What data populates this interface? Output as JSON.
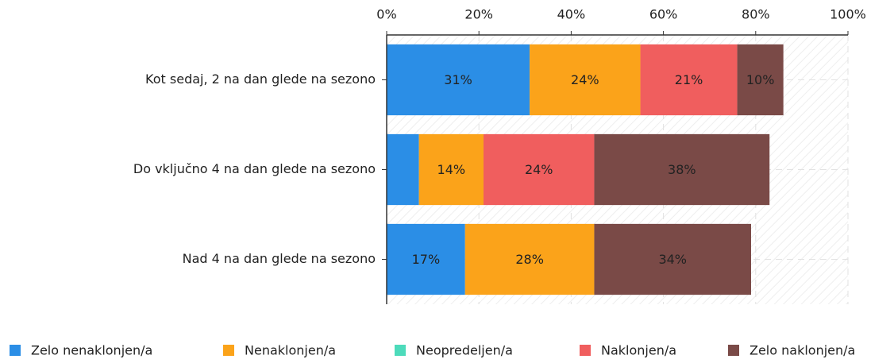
{
  "chart_data": {
    "type": "stacked-barh",
    "categories": [
      "Kot sedaj, 2 na dan glede na sezono",
      "Do vključno 4 na dan glede na sezono ",
      "Nad 4 na dan glede na sezono"
    ],
    "series": [
      {
        "name": "Zelo nenaklonjen/a",
        "color": "#2b8ee6",
        "values": [
          31,
          7,
          17
        ],
        "value_labels": [
          "31%",
          null,
          "17%"
        ]
      },
      {
        "name": "Nenaklonjen/a",
        "color": "#fba31a",
        "values": [
          24,
          14,
          28
        ],
        "value_labels": [
          "24%",
          "14%",
          "28%"
        ]
      },
      {
        "name": "Neopredeljen/a",
        "color": "#4ddbbb",
        "values": [
          0,
          0,
          0
        ],
        "value_labels": [
          null,
          null,
          null
        ]
      },
      {
        "name": "Naklonjen/a",
        "color": "#f05e5e",
        "values": [
          21,
          24,
          0
        ],
        "value_labels": [
          "21%",
          "24%",
          null
        ]
      },
      {
        "name": "Zelo naklonjen/a",
        "color": "#7a4a47",
        "values": [
          10,
          38,
          34
        ],
        "value_labels": [
          "10%",
          "38%",
          "34%"
        ]
      }
    ],
    "xlim": [
      0,
      100
    ],
    "xticks": [
      {
        "value": 0,
        "label": "0%"
      },
      {
        "value": 20,
        "label": "20%"
      },
      {
        "value": 40,
        "label": "40%"
      },
      {
        "value": 60,
        "label": "60%"
      },
      {
        "value": 80,
        "label": "80%"
      },
      {
        "value": 100,
        "label": "100%"
      }
    ],
    "grid": true,
    "legend": "bottom"
  }
}
